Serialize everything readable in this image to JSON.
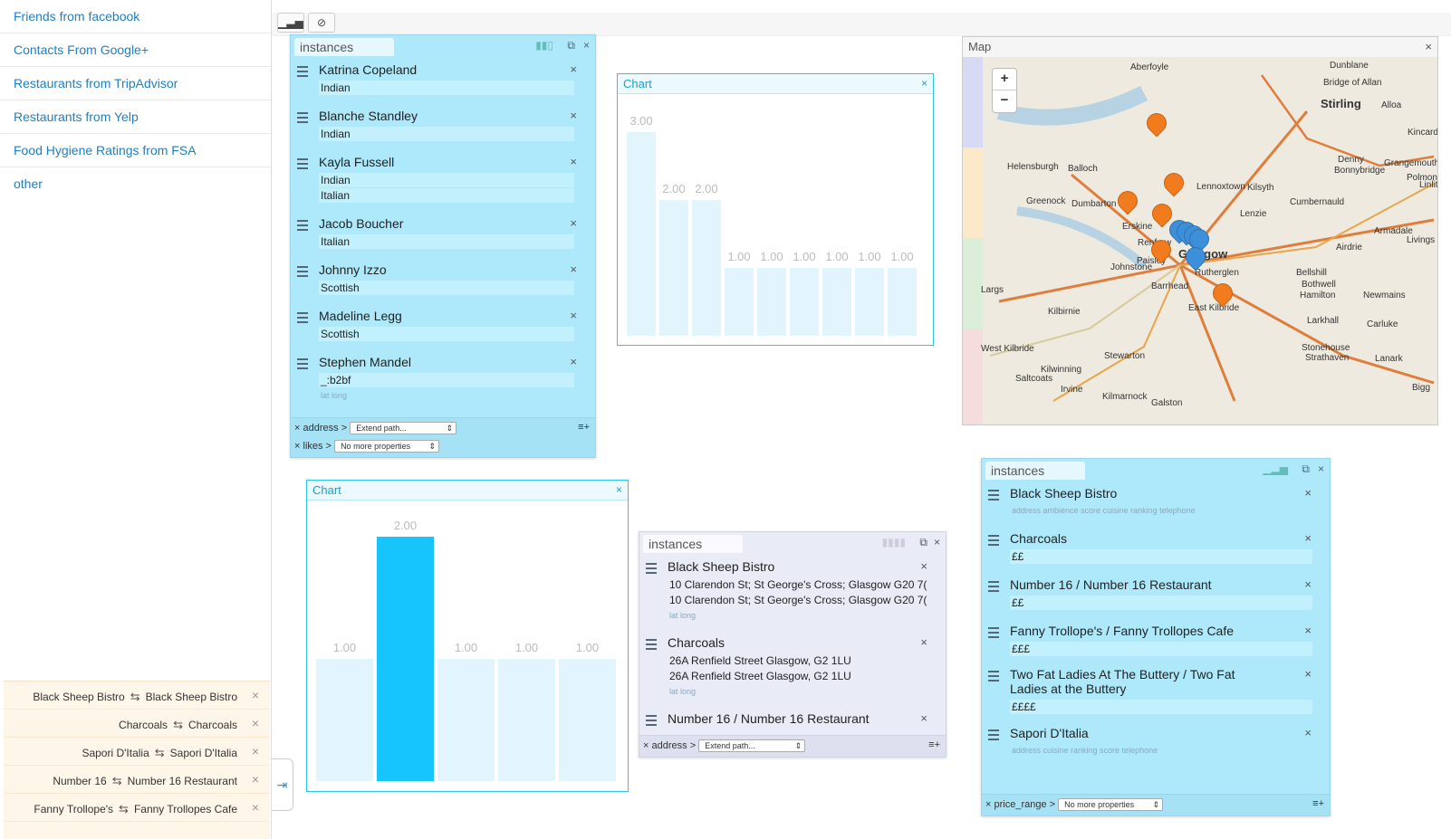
{
  "sidebar": {
    "items": [
      "Friends from facebook",
      "Contacts From Google+",
      "Restaurants from TripAdvisor",
      "Restaurants from Yelp",
      "Food Hygiene Ratings from FSA",
      "other"
    ]
  },
  "matches": [
    {
      "left": "Black Sheep Bistro",
      "right": "Black Sheep Bistro"
    },
    {
      "left": "Charcoals",
      "right": "Charcoals"
    },
    {
      "left": "Sapori D'Italia",
      "right": "Sapori D'Italia"
    },
    {
      "left": "Number 16",
      "right": "Number 16 Restaurant"
    },
    {
      "left": "Fanny Trollope's",
      "right": "Fanny Trollopes Cafe"
    }
  ],
  "panel1": {
    "tab": "instances",
    "items": [
      {
        "name": "Katrina Copeland",
        "values": [
          "Indian"
        ]
      },
      {
        "name": "Blanche Standley",
        "values": [
          "Indian"
        ]
      },
      {
        "name": "Kayla Fussell",
        "values": [
          "Indian",
          "Italian"
        ]
      },
      {
        "name": "Jacob Boucher",
        "values": [
          "Italian"
        ]
      },
      {
        "name": "Johnny Izzo",
        "values": [
          "Scottish"
        ]
      },
      {
        "name": "Madeline Legg",
        "values": [
          "Scottish"
        ]
      },
      {
        "name": "Stephen Mandel",
        "values": [
          "_:b2bf"
        ],
        "small": "lat long"
      }
    ],
    "footer": [
      {
        "prop": "address >",
        "select": "Extend path..."
      },
      {
        "prop": "likes >",
        "select": "No more properties"
      }
    ]
  },
  "chart1": {
    "title": "Chart",
    "chart_data": {
      "type": "bar",
      "values": [
        3.0,
        2.0,
        2.0,
        1.0,
        1.0,
        1.0,
        1.0,
        1.0,
        1.0
      ],
      "labels": [
        "3.00",
        "2.00",
        "2.00",
        "1.00",
        "1.00",
        "1.00",
        "1.00",
        "1.00",
        "1.00"
      ],
      "ylim": [
        0,
        3
      ]
    }
  },
  "chart2": {
    "title": "Chart",
    "chart_data": {
      "type": "bar",
      "values": [
        1.0,
        2.0,
        1.0,
        1.0,
        1.0
      ],
      "labels": [
        "1.00",
        "2.00",
        "1.00",
        "1.00",
        "1.00"
      ],
      "highlight": 1,
      "ylim": [
        0,
        2
      ]
    }
  },
  "panel2": {
    "tab": "instances",
    "items": [
      {
        "name": "Black Sheep Bistro",
        "values": [
          "10 Clarendon St; St George's Cross; Glasgow G20 7(",
          "10 Clarendon St; St George's Cross; Glasgow G20 7("
        ],
        "small": "lat long"
      },
      {
        "name": "Charcoals",
        "values": [
          "26A Renfield Street Glasgow, G2 1LU",
          "26A Renfield Street Glasgow, G2 1LU"
        ],
        "small": "lat long"
      },
      {
        "name": "Number 16 / Number 16 Restaurant",
        "values": []
      }
    ],
    "footer": [
      {
        "prop": "address >",
        "select": "Extend path..."
      }
    ]
  },
  "panel3": {
    "tab": "instances",
    "items": [
      {
        "name": "Black Sheep Bistro",
        "small": "address ambience score cuisine ranking telephone"
      },
      {
        "name": "Charcoals",
        "values": [
          "££"
        ]
      },
      {
        "name": "Number 16 / Number 16 Restaurant",
        "values": [
          "££"
        ]
      },
      {
        "name": "Fanny Trollope's / Fanny Trollopes Cafe",
        "values": [
          "£££"
        ]
      },
      {
        "name": "Two Fat Ladies At The Buttery / Two Fat",
        "name2": "Ladies at the Buttery",
        "values": [
          "££££"
        ]
      },
      {
        "name": "Sapori D'Italia",
        "small": "address cuisine ranking score telephone"
      }
    ],
    "footer": [
      {
        "prop": "price_range >",
        "select": "No more properties"
      }
    ]
  },
  "map": {
    "title": "Map",
    "places": [
      "Aberfoyle",
      "Dunblane",
      "Bridge of Allan",
      "Stirling",
      "Alloa",
      "Kincardine",
      "Helensburgh",
      "Balloch",
      "Denny",
      "Bonnybridge",
      "Grangemouth",
      "Polmont",
      "Linlithgow",
      "Lennoxtown",
      "Kilsyth",
      "Cumbernauld",
      "Greenock",
      "Dumbarton",
      "Erskine",
      "Lenzie",
      "Armadale",
      "Livings",
      "Renfrew",
      "Glasgow",
      "Airdrie",
      "Paisley",
      "Johnstone",
      "Rutherglen",
      "Bellshill",
      "Bothwell",
      "Hamilton",
      "Newmains",
      "Barrhead",
      "East Kilbride",
      "Kilbirnie",
      "Larkhall",
      "Carluke",
      "Largs",
      "West Kilbride",
      "Stewarton",
      "Stonehouse",
      "Strathaven",
      "Lanark",
      "Kilwinning",
      "Saltcoats",
      "Irvine",
      "Kilmarnock",
      "Galston",
      "Bigg"
    ]
  }
}
